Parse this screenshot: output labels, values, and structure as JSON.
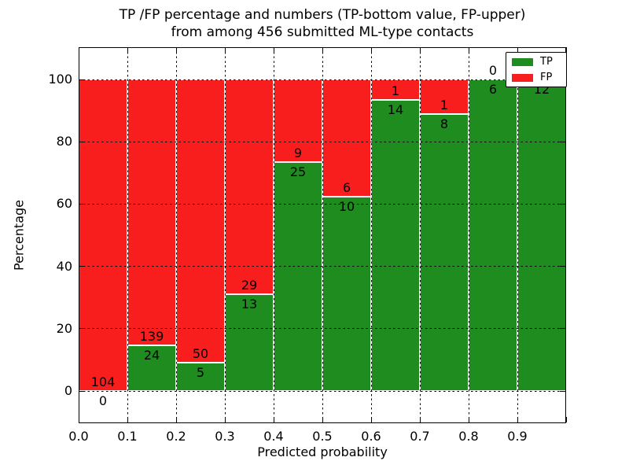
{
  "title": {
    "line1": "TP /FP percentage and numbers (TP-bottom value, FP-upper)",
    "line2": "from among 456 submitted ML-type contacts"
  },
  "colors": {
    "tp_green": "#1E8C1E",
    "fp_red": "#F81E1E",
    "grid": "#000000",
    "background": "#FFFFFF"
  },
  "chart_data": {
    "type": "bar",
    "subtype": "stacked-percentage",
    "title": "TP /FP percentage and numbers (TP-bottom value, FP-upper) from among 456 submitted ML-type contacts",
    "xlabel": "Predicted probability",
    "ylabel": "Percentage",
    "total_contacts": 456,
    "categories": [
      "0.0-0.1",
      "0.1-0.2",
      "0.2-0.3",
      "0.3-0.4",
      "0.4-0.5",
      "0.5-0.6",
      "0.6-0.7",
      "0.7-0.8",
      "0.8-0.9",
      "0.9-1.0"
    ],
    "series": [
      {
        "name": "TP",
        "color": "#1E8C1E",
        "counts": [
          0,
          24,
          5,
          13,
          25,
          10,
          14,
          8,
          6,
          12
        ]
      },
      {
        "name": "FP",
        "color": "#F81E1E",
        "counts": [
          104,
          139,
          50,
          29,
          9,
          6,
          1,
          1,
          0,
          0
        ]
      }
    ],
    "tp_percent": [
      0.0,
      14.7,
      9.1,
      31.0,
      73.5,
      62.5,
      93.3,
      88.9,
      100.0,
      100.0
    ],
    "x_tick_labels": [
      "0.0",
      "0.1",
      "0.2",
      "0.3",
      "0.4",
      "0.5",
      "0.6",
      "0.7",
      "0.8",
      "0.9"
    ],
    "y_tick_labels": [
      "0",
      "20",
      "40",
      "60",
      "80",
      "100"
    ],
    "y_tick_values": [
      0,
      20,
      40,
      60,
      80,
      100
    ],
    "xlim": [
      0.0,
      1.0
    ],
    "ylim": [
      -10.4,
      110.4
    ],
    "grid": "dotted, drawn above bars",
    "legend": {
      "position": "upper right",
      "entries": [
        {
          "label": "TP"
        },
        {
          "label": "FP"
        }
      ]
    }
  }
}
